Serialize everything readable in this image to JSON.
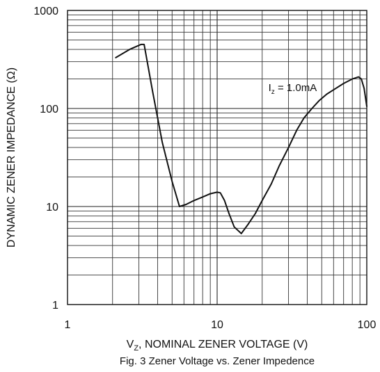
{
  "chart_data": {
    "type": "line",
    "xscale": "log",
    "yscale": "log",
    "xlim": [
      1,
      100
    ],
    "ylim": [
      1,
      1000
    ],
    "xticks": [
      "1",
      "10",
      "100"
    ],
    "yticks": [
      "1",
      "10",
      "100",
      "1000"
    ],
    "grid": true,
    "xlabel_sub": "Z",
    "xlabel_main": ", NOMINAL ZENER VOLTAGE (V)",
    "ylabel": "DYNAMIC ZENER IMPEDANCE (Ω)",
    "caption": "Fig. 3  Zener Voltage vs. Zener Impedence",
    "annotation": {
      "prefix": "I",
      "sub": "z",
      "suffix": " = 1.0mA",
      "x": 22,
      "y": 150
    },
    "series": [
      {
        "x": [
          2.1,
          2.6,
          3.1,
          3.25,
          3.7,
          4.3,
          5.0,
          5.6,
          6.2,
          7.0,
          8.0,
          9.0,
          10.0,
          10.5,
          11.2,
          12.0,
          13.0,
          14.5,
          16.0,
          18.0,
          20.0,
          23.0,
          26.0,
          30.0,
          34.0,
          38.0,
          43.0,
          48.0,
          54.0,
          62.0,
          70.0,
          80.0,
          88.0,
          92.0,
          96.0,
          100.0
        ],
        "y": [
          330,
          400,
          450,
          450,
          150,
          45,
          18,
          10,
          10.5,
          11.5,
          12.5,
          13.5,
          14,
          13.8,
          11.5,
          8.5,
          6.2,
          5.3,
          6.5,
          8.5,
          11.5,
          17,
          26,
          40,
          60,
          80,
          100,
          120,
          140,
          160,
          180,
          200,
          210,
          200,
          160,
          105
        ]
      }
    ]
  }
}
